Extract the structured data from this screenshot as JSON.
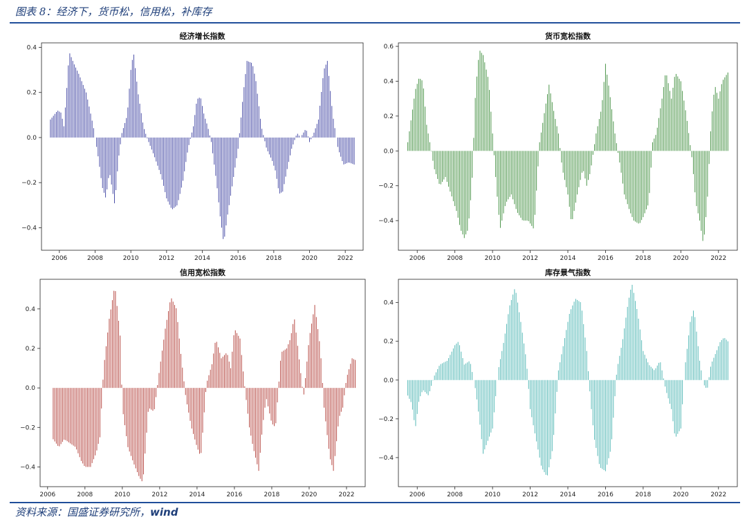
{
  "figure_title": "图表 8：经济下，货币松，信用松，补库存",
  "source_prefix": "资料来源：国盛证券研究所，",
  "source_suffix": "wind",
  "chart_data": [
    {
      "type": "bar",
      "title": "经济增长指数",
      "color": "#4b4fa8",
      "xlim": [
        2005.0,
        2023.0
      ],
      "ylim": [
        -0.5,
        0.42
      ],
      "xticks": [
        2006,
        2008,
        2010,
        2012,
        2014,
        2016,
        2018,
        2020,
        2022
      ],
      "yticks": [
        -0.4,
        -0.2,
        0.0,
        0.2,
        0.4
      ],
      "x_start": 2005.5,
      "x_end": 2022.5,
      "anchors": [
        [
          2005.5,
          0.08
        ],
        [
          2005.7,
          0.1
        ],
        [
          2005.9,
          0.12
        ],
        [
          2006.1,
          0.11
        ],
        [
          2006.25,
          0.05
        ],
        [
          2006.4,
          0.2
        ],
        [
          2006.55,
          0.38
        ],
        [
          2006.8,
          0.33
        ],
        [
          2007.1,
          0.28
        ],
        [
          2007.5,
          0.2
        ],
        [
          2007.9,
          0.05
        ],
        [
          2008.2,
          -0.1
        ],
        [
          2008.4,
          -0.22
        ],
        [
          2008.6,
          -0.27
        ],
        [
          2008.8,
          -0.15
        ],
        [
          2009.0,
          -0.25
        ],
        [
          2009.1,
          -0.3
        ],
        [
          2009.3,
          -0.1
        ],
        [
          2009.5,
          0.02
        ],
        [
          2009.8,
          0.1
        ],
        [
          2010.0,
          0.3
        ],
        [
          2010.15,
          0.38
        ],
        [
          2010.4,
          0.2
        ],
        [
          2010.7,
          0.05
        ],
        [
          2010.9,
          0.0
        ],
        [
          2011.3,
          -0.08
        ],
        [
          2011.7,
          -0.17
        ],
        [
          2012.0,
          -0.27
        ],
        [
          2012.3,
          -0.32
        ],
        [
          2012.6,
          -0.3
        ],
        [
          2012.9,
          -0.2
        ],
        [
          2013.2,
          -0.05
        ],
        [
          2013.5,
          0.05
        ],
        [
          2013.7,
          0.17
        ],
        [
          2013.9,
          0.18
        ],
        [
          2014.1,
          0.1
        ],
        [
          2014.3,
          0.05
        ],
        [
          2014.5,
          -0.02
        ],
        [
          2014.8,
          -0.2
        ],
        [
          2015.0,
          -0.35
        ],
        [
          2015.2,
          -0.47
        ],
        [
          2015.4,
          -0.35
        ],
        [
          2015.7,
          -0.2
        ],
        [
          2016.0,
          -0.05
        ],
        [
          2016.3,
          0.2
        ],
        [
          2016.5,
          0.34
        ],
        [
          2016.8,
          0.33
        ],
        [
          2017.0,
          0.25
        ],
        [
          2017.3,
          0.05
        ],
        [
          2017.6,
          -0.05
        ],
        [
          2017.9,
          -0.1
        ],
        [
          2018.1,
          -0.15
        ],
        [
          2018.3,
          -0.25
        ],
        [
          2018.5,
          -0.24
        ],
        [
          2018.8,
          -0.12
        ],
        [
          2019.0,
          -0.05
        ],
        [
          2019.3,
          0.02
        ],
        [
          2019.5,
          0.0
        ],
        [
          2019.8,
          0.04
        ],
        [
          2020.0,
          -0.02
        ],
        [
          2020.2,
          0.01
        ],
        [
          2020.5,
          0.08
        ],
        [
          2020.8,
          0.3
        ],
        [
          2021.0,
          0.34
        ],
        [
          2021.3,
          0.1
        ],
        [
          2021.6,
          -0.05
        ],
        [
          2021.9,
          -0.12
        ],
        [
          2022.2,
          -0.11
        ],
        [
          2022.5,
          -0.12
        ]
      ]
    },
    {
      "type": "bar",
      "title": "货币宽松指数",
      "color": "#4a9448",
      "xlim": [
        2005.0,
        2023.0
      ],
      "ylim": [
        -0.57,
        0.62
      ],
      "xticks": [
        2006,
        2008,
        2010,
        2012,
        2014,
        2016,
        2018,
        2020,
        2022
      ],
      "yticks": [
        -0.4,
        -0.2,
        0.0,
        0.2,
        0.4,
        0.6
      ],
      "x_start": 2005.5,
      "x_end": 2022.5,
      "anchors": [
        [
          2005.5,
          0.05
        ],
        [
          2005.7,
          0.2
        ],
        [
          2005.9,
          0.35
        ],
        [
          2006.1,
          0.42
        ],
        [
          2006.3,
          0.4
        ],
        [
          2006.5,
          0.15
        ],
        [
          2006.7,
          0.03
        ],
        [
          2006.9,
          -0.1
        ],
        [
          2007.2,
          -0.2
        ],
        [
          2007.5,
          -0.15
        ],
        [
          2007.8,
          -0.25
        ],
        [
          2008.1,
          -0.35
        ],
        [
          2008.3,
          -0.45
        ],
        [
          2008.5,
          -0.5
        ],
        [
          2008.7,
          -0.45
        ],
        [
          2008.9,
          -0.2
        ],
        [
          2009.1,
          0.35
        ],
        [
          2009.3,
          0.58
        ],
        [
          2009.5,
          0.55
        ],
        [
          2009.8,
          0.4
        ],
        [
          2010.0,
          0.1
        ],
        [
          2010.2,
          -0.2
        ],
        [
          2010.4,
          -0.45
        ],
        [
          2010.7,
          -0.3
        ],
        [
          2011.0,
          -0.25
        ],
        [
          2011.3,
          -0.35
        ],
        [
          2011.6,
          -0.4
        ],
        [
          2011.9,
          -0.4
        ],
        [
          2012.2,
          -0.45
        ],
        [
          2012.5,
          0.05
        ],
        [
          2012.8,
          0.25
        ],
        [
          2013.0,
          0.38
        ],
        [
          2013.3,
          0.2
        ],
        [
          2013.5,
          0.1
        ],
        [
          2013.7,
          -0.1
        ],
        [
          2014.0,
          -0.25
        ],
        [
          2014.2,
          -0.42
        ],
        [
          2014.5,
          -0.25
        ],
        [
          2014.8,
          -0.1
        ],
        [
          2015.0,
          -0.2
        ],
        [
          2015.2,
          -0.12
        ],
        [
          2015.5,
          0.1
        ],
        [
          2015.8,
          0.25
        ],
        [
          2016.0,
          0.5
        ],
        [
          2016.2,
          0.35
        ],
        [
          2016.5,
          0.1
        ],
        [
          2016.8,
          -0.1
        ],
        [
          2017.0,
          -0.25
        ],
        [
          2017.3,
          -0.35
        ],
        [
          2017.5,
          -0.4
        ],
        [
          2017.8,
          -0.42
        ],
        [
          2018.0,
          -0.38
        ],
        [
          2018.3,
          -0.3
        ],
        [
          2018.5,
          0.05
        ],
        [
          2018.7,
          0.1
        ],
        [
          2019.0,
          0.3
        ],
        [
          2019.2,
          0.46
        ],
        [
          2019.5,
          0.3
        ],
        [
          2019.7,
          0.45
        ],
        [
          2020.0,
          0.4
        ],
        [
          2020.3,
          0.2
        ],
        [
          2020.6,
          -0.05
        ],
        [
          2020.8,
          -0.3
        ],
        [
          2021.0,
          -0.4
        ],
        [
          2021.2,
          -0.54
        ],
        [
          2021.4,
          -0.3
        ],
        [
          2021.6,
          0.15
        ],
        [
          2021.8,
          0.38
        ],
        [
          2022.0,
          0.3
        ],
        [
          2022.2,
          0.4
        ],
        [
          2022.5,
          0.45
        ]
      ]
    },
    {
      "type": "bar",
      "title": "信用宽松指数",
      "color": "#b74a44",
      "xlim": [
        2005.6,
        2023.0
      ],
      "ylim": [
        -0.5,
        0.55
      ],
      "xticks": [
        2006,
        2008,
        2010,
        2012,
        2014,
        2016,
        2018,
        2020,
        2022
      ],
      "yticks": [
        -0.4,
        -0.2,
        0.0,
        0.2,
        0.4
      ],
      "x_start": 2006.3,
      "x_end": 2022.5,
      "anchors": [
        [
          2006.3,
          -0.26
        ],
        [
          2006.6,
          -0.3
        ],
        [
          2006.9,
          -0.26
        ],
        [
          2007.2,
          -0.28
        ],
        [
          2007.5,
          -0.3
        ],
        [
          2007.8,
          -0.37
        ],
        [
          2008.0,
          -0.4
        ],
        [
          2008.3,
          -0.4
        ],
        [
          2008.6,
          -0.33
        ],
        [
          2008.8,
          -0.25
        ],
        [
          2009.0,
          0.1
        ],
        [
          2009.3,
          0.35
        ],
        [
          2009.6,
          0.52
        ],
        [
          2009.9,
          0.25
        ],
        [
          2010.0,
          -0.1
        ],
        [
          2010.3,
          -0.3
        ],
        [
          2010.6,
          -0.38
        ],
        [
          2010.9,
          -0.45
        ],
        [
          2011.1,
          -0.48
        ],
        [
          2011.4,
          -0.1
        ],
        [
          2011.7,
          -0.12
        ],
        [
          2012.0,
          0.1
        ],
        [
          2012.3,
          0.3
        ],
        [
          2012.6,
          0.46
        ],
        [
          2012.9,
          0.4
        ],
        [
          2013.1,
          0.2
        ],
        [
          2013.4,
          -0.05
        ],
        [
          2013.7,
          -0.2
        ],
        [
          2014.0,
          -0.3
        ],
        [
          2014.2,
          -0.35
        ],
        [
          2014.5,
          0.02
        ],
        [
          2014.8,
          0.12
        ],
        [
          2015.0,
          0.25
        ],
        [
          2015.3,
          0.15
        ],
        [
          2015.6,
          0.18
        ],
        [
          2015.8,
          0.1
        ],
        [
          2016.0,
          0.3
        ],
        [
          2016.3,
          0.25
        ],
        [
          2016.5,
          0.05
        ],
        [
          2016.8,
          -0.2
        ],
        [
          2017.0,
          -0.3
        ],
        [
          2017.3,
          -0.42
        ],
        [
          2017.5,
          -0.2
        ],
        [
          2017.7,
          -0.05
        ],
        [
          2018.0,
          -0.18
        ],
        [
          2018.2,
          -0.2
        ],
        [
          2018.5,
          0.18
        ],
        [
          2018.8,
          0.2
        ],
        [
          2019.0,
          0.25
        ],
        [
          2019.2,
          0.36
        ],
        [
          2019.4,
          0.2
        ],
        [
          2019.7,
          -0.05
        ],
        [
          2020.0,
          0.25
        ],
        [
          2020.3,
          0.42
        ],
        [
          2020.6,
          0.2
        ],
        [
          2020.8,
          -0.1
        ],
        [
          2021.1,
          -0.35
        ],
        [
          2021.3,
          -0.42
        ],
        [
          2021.6,
          -0.15
        ],
        [
          2021.8,
          -0.1
        ],
        [
          2022.0,
          0.05
        ],
        [
          2022.3,
          0.15
        ],
        [
          2022.5,
          0.14
        ]
      ]
    },
    {
      "type": "bar",
      "title": "库存景气指数",
      "color": "#56b9b7",
      "xlim": [
        2005.0,
        2023.0
      ],
      "ylim": [
        -0.55,
        0.52
      ],
      "xticks": [
        2006,
        2008,
        2010,
        2012,
        2014,
        2016,
        2018,
        2020,
        2022
      ],
      "yticks": [
        -0.4,
        -0.2,
        0.0,
        0.2,
        0.4
      ],
      "x_start": 2005.5,
      "x_end": 2022.5,
      "anchors": [
        [
          2005.5,
          -0.08
        ],
        [
          2005.7,
          -0.12
        ],
        [
          2005.9,
          -0.25
        ],
        [
          2006.1,
          -0.1
        ],
        [
          2006.3,
          -0.05
        ],
        [
          2006.6,
          -0.08
        ],
        [
          2006.9,
          0.02
        ],
        [
          2007.2,
          0.08
        ],
        [
          2007.6,
          0.1
        ],
        [
          2008.0,
          0.18
        ],
        [
          2008.2,
          0.2
        ],
        [
          2008.5,
          0.08
        ],
        [
          2008.8,
          0.1
        ],
        [
          2009.1,
          -0.05
        ],
        [
          2009.3,
          -0.2
        ],
        [
          2009.5,
          -0.38
        ],
        [
          2009.8,
          -0.3
        ],
        [
          2010.0,
          -0.25
        ],
        [
          2010.3,
          0.05
        ],
        [
          2010.6,
          0.2
        ],
        [
          2010.9,
          0.38
        ],
        [
          2011.2,
          0.48
        ],
        [
          2011.5,
          0.3
        ],
        [
          2011.8,
          0.1
        ],
        [
          2012.0,
          -0.15
        ],
        [
          2012.3,
          -0.3
        ],
        [
          2012.6,
          -0.45
        ],
        [
          2012.9,
          -0.5
        ],
        [
          2013.2,
          -0.35
        ],
        [
          2013.5,
          0.05
        ],
        [
          2013.8,
          0.2
        ],
        [
          2014.1,
          0.35
        ],
        [
          2014.4,
          0.42
        ],
        [
          2014.7,
          0.4
        ],
        [
          2015.0,
          0.15
        ],
        [
          2015.2,
          -0.1
        ],
        [
          2015.4,
          -0.3
        ],
        [
          2015.7,
          -0.45
        ],
        [
          2016.0,
          -0.47
        ],
        [
          2016.3,
          -0.35
        ],
        [
          2016.6,
          0.05
        ],
        [
          2016.9,
          0.2
        ],
        [
          2017.2,
          0.4
        ],
        [
          2017.4,
          0.5
        ],
        [
          2017.7,
          0.35
        ],
        [
          2018.0,
          0.15
        ],
        [
          2018.3,
          0.08
        ],
        [
          2018.6,
          0.05
        ],
        [
          2018.9,
          0.1
        ],
        [
          2019.2,
          -0.05
        ],
        [
          2019.5,
          -0.15
        ],
        [
          2019.7,
          -0.3
        ],
        [
          2020.0,
          -0.25
        ],
        [
          2020.2,
          0.05
        ],
        [
          2020.5,
          0.3
        ],
        [
          2020.7,
          0.37
        ],
        [
          2021.0,
          0.1
        ],
        [
          2021.2,
          -0.02
        ],
        [
          2021.4,
          -0.05
        ],
        [
          2021.6,
          0.08
        ],
        [
          2021.9,
          0.15
        ],
        [
          2022.1,
          0.2
        ],
        [
          2022.3,
          0.22
        ],
        [
          2022.5,
          0.2
        ]
      ]
    }
  ]
}
